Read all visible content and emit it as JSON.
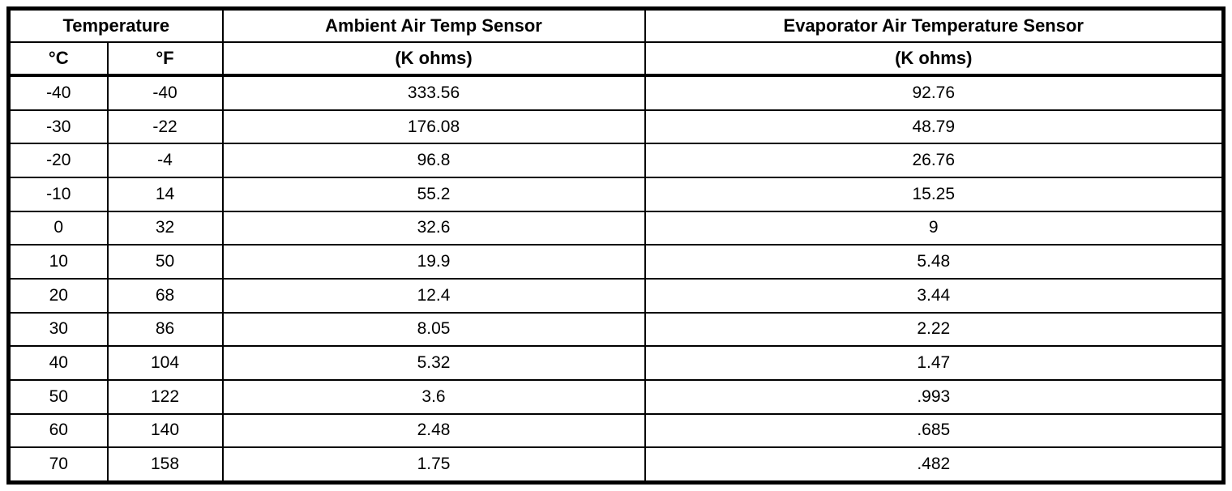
{
  "table": {
    "col_groups": [
      {
        "label": "Temperature",
        "colspan": 2
      },
      {
        "label": "Ambient Air Temp Sensor",
        "colspan": 1
      },
      {
        "label": "Evaporator Air Temperature Sensor",
        "colspan": 1
      }
    ],
    "sub_headers": [
      "°C",
      "°F",
      "(K ohms)",
      "(K ohms)"
    ],
    "rows": [
      [
        "-40",
        "-40",
        "333.56",
        "92.76"
      ],
      [
        "-30",
        "-22",
        "176.08",
        "48.79"
      ],
      [
        "-20",
        "-4",
        "96.8",
        "26.76"
      ],
      [
        "-10",
        "14",
        "55.2",
        "15.25"
      ],
      [
        "0",
        "32",
        "32.6",
        "9"
      ],
      [
        "10",
        "50",
        "19.9",
        "5.48"
      ],
      [
        "20",
        "68",
        "12.4",
        "3.44"
      ],
      [
        "30",
        "86",
        "8.05",
        "2.22"
      ],
      [
        "40",
        "104",
        "5.32",
        "1.47"
      ],
      [
        "50",
        "122",
        "3.6",
        ".993"
      ],
      [
        "60",
        "140",
        "2.48",
        ".685"
      ],
      [
        "70",
        "158",
        "1.75",
        ".482"
      ]
    ],
    "colors": {
      "border": "#000000",
      "background": "#ffffff",
      "text": "#000000"
    }
  }
}
